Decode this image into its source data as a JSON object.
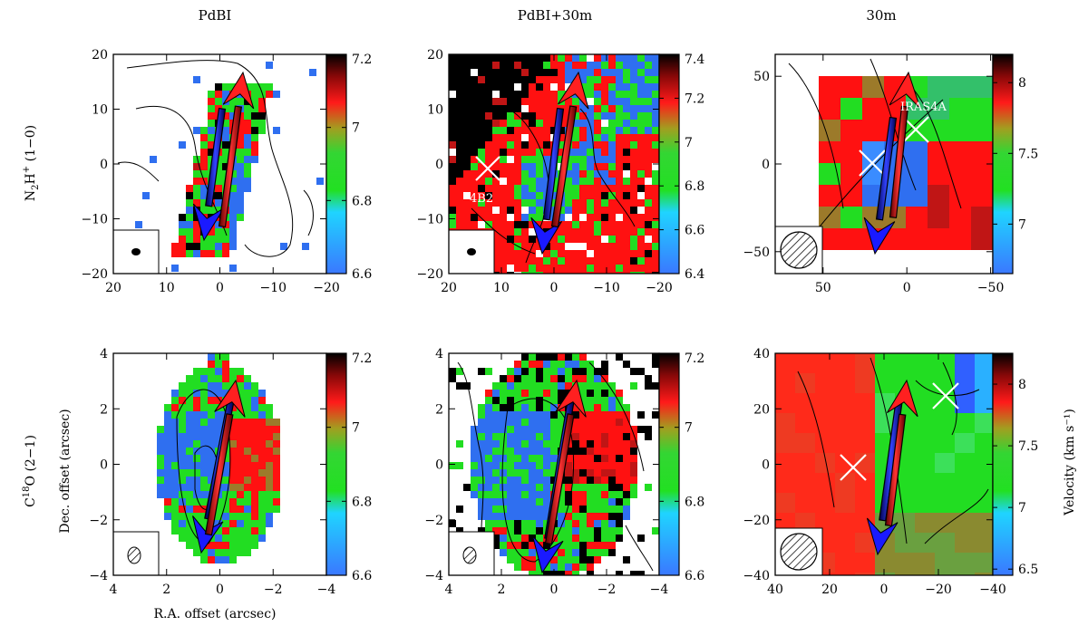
{
  "figure": {
    "column_titles": [
      "PdBI",
      "PdBI+30m",
      "30m"
    ],
    "row_labels": [
      "N2H+ (1−0)",
      "C18O (2−1)"
    ],
    "xlabel": "R.A. offset (arcsec)",
    "ylabel": "Dec. offset (arcsec)",
    "colorbar_label": "Velocity (km s⁻¹)",
    "colors": {
      "blue": "#2f6ff0",
      "green": "#22dd22",
      "red": "#ff1111",
      "black": "#000000",
      "outflow_red": "#ff2020",
      "outflow_blue": "#1a1aff"
    }
  },
  "panels": [
    {
      "id": "top-left",
      "xticks": [
        "20",
        "10",
        "0",
        "−10",
        "−20"
      ],
      "yticks": [
        "20",
        "10",
        "0",
        "−10",
        "−20"
      ],
      "cbar_ticks": [
        "7.2",
        "7",
        "6.8",
        "6.6"
      ],
      "cbar_range": [
        6.6,
        7.2
      ],
      "labels": []
    },
    {
      "id": "top-middle",
      "xticks": [
        "20",
        "10",
        "0",
        "−10",
        "−20"
      ],
      "yticks": [
        "20",
        "10",
        "0",
        "−10",
        "−20"
      ],
      "cbar_ticks": [
        "7.4",
        "7.2",
        "7",
        "6.8",
        "6.6",
        "6.4"
      ],
      "cbar_range": [
        6.4,
        7.4
      ],
      "labels": [
        "4B2"
      ]
    },
    {
      "id": "top-right",
      "xticks": [
        "50",
        "0",
        "−50"
      ],
      "yticks": [
        "50",
        "0",
        "−50"
      ],
      "cbar_ticks": [
        "8",
        "7.5",
        "7"
      ],
      "cbar_range": [
        6.65,
        8.2
      ],
      "labels": [
        "IRAS4A"
      ]
    },
    {
      "id": "bottom-left",
      "xticks": [
        "4",
        "2",
        "0",
        "−2",
        "−4"
      ],
      "yticks": [
        "4",
        "2",
        "0",
        "−2",
        "−4"
      ],
      "cbar_ticks": [
        "7.2",
        "7",
        "6.8",
        "6.6"
      ],
      "cbar_range": [
        6.6,
        7.2
      ],
      "labels": []
    },
    {
      "id": "bottom-middle",
      "xticks": [
        "4",
        "2",
        "0",
        "−2",
        "−4"
      ],
      "yticks": [
        "4",
        "2",
        "0",
        "−2",
        "−4"
      ],
      "cbar_ticks": [
        "7.2",
        "7",
        "6.8",
        "6.6"
      ],
      "cbar_range": [
        6.6,
        7.2
      ],
      "labels": []
    },
    {
      "id": "bottom-right",
      "xticks": [
        "40",
        "20",
        "0",
        "−20",
        "−40"
      ],
      "yticks": [
        "40",
        "20",
        "0",
        "−20",
        "−40"
      ],
      "cbar_ticks": [
        "8",
        "7.5",
        "7",
        "6.5"
      ],
      "cbar_range": [
        6.45,
        8.25
      ],
      "labels": []
    }
  ]
}
